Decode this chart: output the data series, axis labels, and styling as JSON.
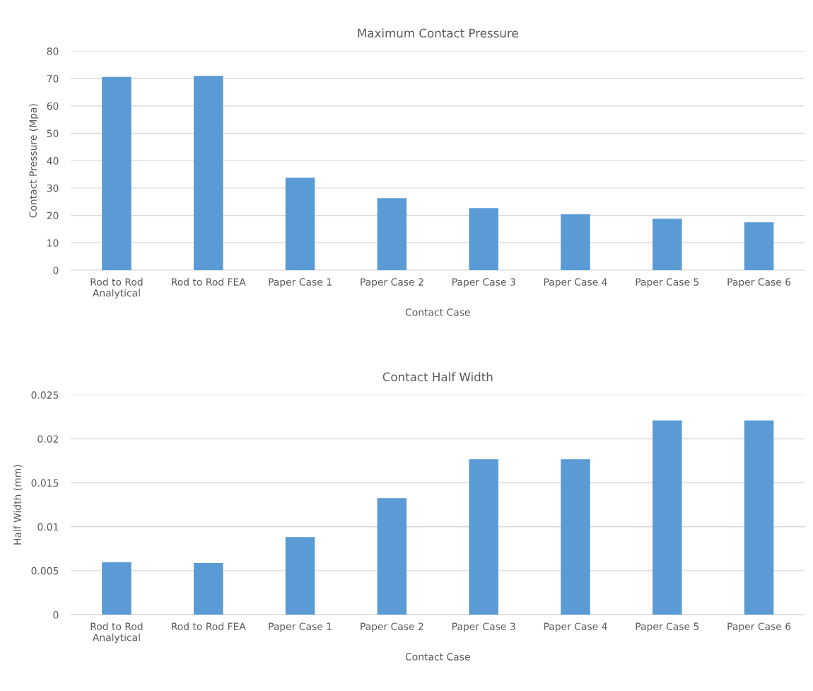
{
  "chart_data": [
    {
      "type": "bar",
      "title": "Maximum Contact Pressure",
      "xlabel": "Contact Case",
      "ylabel": "Contact Pressure (Mpa)",
      "categories": [
        "Rod to Rod\nAnalytical",
        "Rod to Rod FEA",
        "Paper Case 1",
        "Paper Case 2",
        "Paper Case 3",
        "Paper Case 4",
        "Paper Case 5",
        "Paper Case 6"
      ],
      "values": [
        70.6,
        71,
        33.8,
        26.3,
        22.7,
        20.4,
        18.8,
        17.5
      ],
      "color": "#5b9bd5",
      "ylim": [
        0,
        80
      ],
      "yticks": [
        0,
        10,
        20,
        30,
        40,
        50,
        60,
        70,
        80
      ],
      "grid": "y"
    },
    {
      "type": "bar",
      "title": "Contact Half Width",
      "xlabel": "Contact Case",
      "ylabel": "Half Width (mm)",
      "categories": [
        "Rod to Rod\nAnalytical",
        "Rod to Rod FEA",
        "Paper Case 1",
        "Paper Case 2",
        "Paper Case 3",
        "Paper Case 4",
        "Paper Case 5",
        "Paper Case 6"
      ],
      "values": [
        0.00595,
        0.00587,
        0.00884,
        0.01326,
        0.01768,
        0.01768,
        0.0221,
        0.0221
      ],
      "color": "#5b9bd5",
      "ylim": [
        0,
        0.025
      ],
      "yticks": [
        0,
        0.005,
        0.01,
        0.015,
        0.02,
        0.025
      ],
      "grid": "y"
    }
  ]
}
